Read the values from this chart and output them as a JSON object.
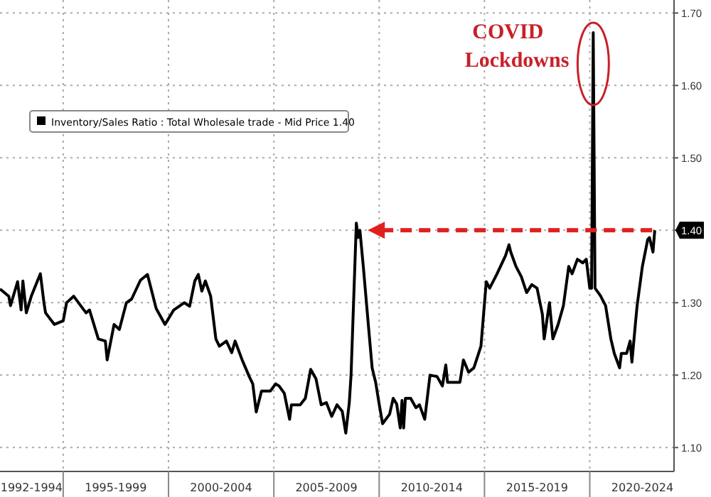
{
  "chart_data": {
    "type": "line",
    "x": [
      "1992-01",
      "1992-06",
      "1992-07",
      "1992-11",
      "1993-01",
      "1993-02",
      "1993-04",
      "1993-07",
      "1993-12",
      "1994-02",
      "1994-03",
      "1994-08",
      "1995-01",
      "1995-03",
      "1995-07",
      "1996-02",
      "1996-04",
      "1996-09",
      "1997-01",
      "1997-02",
      "1997-06",
      "1997-09",
      "1998-01",
      "1998-04",
      "1998-09",
      "1999-01",
      "1999-06",
      "1999-11",
      "2000-04",
      "2000-10",
      "2001-01",
      "2001-04",
      "2001-06",
      "2001-08",
      "2001-10",
      "2002-01",
      "2002-04",
      "2002-06",
      "2002-10",
      "2003-01",
      "2003-03",
      "2003-07",
      "2003-11",
      "2004-01",
      "2004-03",
      "2004-06",
      "2004-11",
      "2005-02",
      "2005-04",
      "2005-07",
      "2005-10",
      "2005-11",
      "2006-04",
      "2006-07",
      "2006-10",
      "2007-01",
      "2007-04",
      "2007-07",
      "2007-10",
      "2008-01",
      "2008-04",
      "2008-06",
      "2008-08",
      "2008-09",
      "2008-12",
      "2009-01",
      "2009-02",
      "2009-04",
      "2009-07",
      "2009-09",
      "2009-11",
      "2010-01",
      "2010-03",
      "2010-07",
      "2010-09",
      "2010-11",
      "2011-01",
      "2011-02",
      "2011-03",
      "2011-04",
      "2011-07",
      "2011-10",
      "2011-12",
      "2012-03",
      "2012-06",
      "2012-10",
      "2013-01",
      "2013-03",
      "2013-04",
      "2013-11",
      "2014-01",
      "2014-04",
      "2014-07",
      "2014-11",
      "2015-02",
      "2015-04",
      "2015-08",
      "2016-01",
      "2016-03",
      "2016-04",
      "2016-07",
      "2016-10",
      "2017-01",
      "2017-04",
      "2017-07",
      "2017-10",
      "2017-11",
      "2018-02",
      "2018-04",
      "2018-07",
      "2018-10",
      "2019-01",
      "2019-03",
      "2019-06",
      "2019-09",
      "2019-11",
      "2020-01",
      "2020-02",
      "2020-03",
      "2020-04",
      "2020-07",
      "2020-10",
      "2021-01",
      "2021-03",
      "2021-06",
      "2021-07",
      "2021-10",
      "2021-12",
      "2022-01",
      "2022-03",
      "2022-04",
      "2022-07",
      "2022-10",
      "2022-11",
      "2023-01",
      "2023-02"
    ],
    "series": [
      {
        "name": "Inventory/Sales Ratio : Total Wholesale trade - Mid Price 1.40",
        "color": "#000000",
        "values": [
          1.319,
          1.309,
          1.296,
          1.329,
          1.29,
          1.33,
          1.286,
          1.31,
          1.34,
          1.3,
          1.286,
          1.27,
          1.275,
          1.3,
          1.309,
          1.286,
          1.29,
          1.25,
          1.247,
          1.221,
          1.27,
          1.263,
          1.3,
          1.305,
          1.331,
          1.339,
          1.292,
          1.27,
          1.29,
          1.3,
          1.295,
          1.33,
          1.339,
          1.316,
          1.33,
          1.309,
          1.25,
          1.24,
          1.247,
          1.231,
          1.247,
          1.221,
          1.198,
          1.188,
          1.149,
          1.178,
          1.178,
          1.188,
          1.185,
          1.175,
          1.139,
          1.159,
          1.159,
          1.168,
          1.208,
          1.195,
          1.159,
          1.162,
          1.143,
          1.159,
          1.15,
          1.12,
          1.162,
          1.201,
          1.41,
          1.39,
          1.4,
          1.35,
          1.266,
          1.21,
          1.19,
          1.16,
          1.133,
          1.146,
          1.168,
          1.16,
          1.127,
          1.165,
          1.127,
          1.168,
          1.168,
          1.155,
          1.159,
          1.139,
          1.2,
          1.198,
          1.185,
          1.214,
          1.19,
          1.19,
          1.221,
          1.204,
          1.21,
          1.24,
          1.329,
          1.32,
          1.339,
          1.365,
          1.38,
          1.37,
          1.35,
          1.336,
          1.314,
          1.325,
          1.32,
          1.284,
          1.25,
          1.3,
          1.25,
          1.27,
          1.296,
          1.35,
          1.34,
          1.36,
          1.355,
          1.36,
          1.32,
          1.32,
          1.673,
          1.32,
          1.31,
          1.296,
          1.25,
          1.23,
          1.21,
          1.23,
          1.23,
          1.247,
          1.218,
          1.27,
          1.296,
          1.35,
          1.387,
          1.39,
          1.37,
          1.4
        ]
      }
    ],
    "xlim": [
      "1992-01",
      "2024-01"
    ],
    "xticks": [
      {
        "value": "1993-07",
        "label": "1992-1994"
      },
      {
        "value": "1995-01",
        "label": null
      },
      {
        "value": "1997-07",
        "label": "1995-1999"
      },
      {
        "value": "2000-01",
        "label": null
      },
      {
        "value": "2002-07",
        "label": "2000-2004"
      },
      {
        "value": "2005-01",
        "label": null
      },
      {
        "value": "2007-07",
        "label": "2005-2009"
      },
      {
        "value": "2010-01",
        "label": null
      },
      {
        "value": "2012-07",
        "label": "2010-2014"
      },
      {
        "value": "2015-01",
        "label": null
      },
      {
        "value": "2017-07",
        "label": "2015-2019"
      },
      {
        "value": "2020-01",
        "label": null
      },
      {
        "value": "2022-07",
        "label": "2020-2024"
      }
    ],
    "ylim": [
      1.067,
      1.718
    ],
    "yticks": [
      {
        "value": 1.1,
        "label": "1.10"
      },
      {
        "value": 1.2,
        "label": "1.20"
      },
      {
        "value": 1.3,
        "label": "1.30"
      },
      {
        "value": 1.4,
        "label": "1.40"
      },
      {
        "value": 1.5,
        "label": "1.50"
      },
      {
        "value": 1.6,
        "label": "1.60"
      },
      {
        "value": 1.7,
        "label": "1.70"
      }
    ],
    "grid": true,
    "legend": "left",
    "ref_lines": [
      {
        "axis": "y",
        "value": 1.4,
        "label": null,
        "color": "#e02020",
        "line_style": "dashed"
      }
    ],
    "annotations": [
      {
        "text": "COVID Lockdowns",
        "x": "2020-03",
        "y": 1.673
      }
    ]
  }
}
